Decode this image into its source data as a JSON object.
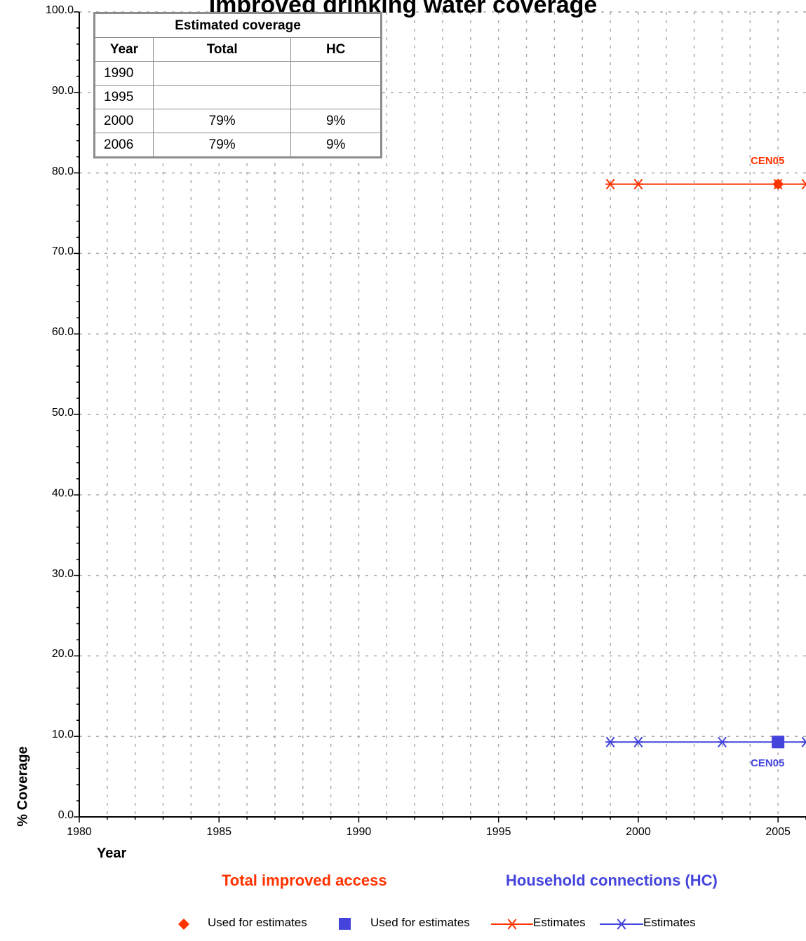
{
  "title": "Improved drinking water coverage",
  "table": {
    "heading": "Estimated coverage",
    "columns": [
      "Year",
      "Total",
      "HC"
    ],
    "rows": [
      {
        "year": "1990",
        "total": "",
        "hc": ""
      },
      {
        "year": "1995",
        "total": "",
        "hc": ""
      },
      {
        "year": "2000",
        "total": "79%",
        "hc": "9%"
      },
      {
        "year": "2006",
        "total": "79%",
        "hc": "9%"
      }
    ]
  },
  "labels": {
    "ylabel": "% Coverage",
    "xlabel": "Year",
    "group_total": "Total improved access",
    "group_hc": "Household connections (HC)",
    "point_total": "CEN05",
    "point_hc": "CEN05"
  },
  "legend": [
    {
      "marker": "diamond",
      "color": "#ff3300",
      "label": "Used for estimates"
    },
    {
      "marker": "square",
      "color": "#4444dd",
      "label": "Used for estimates"
    },
    {
      "marker": "line-star",
      "color": "#ff3300",
      "label": "Estimates"
    },
    {
      "marker": "line-star",
      "color": "#4444dd",
      "label": "Estimates"
    }
  ],
  "colors": {
    "total": "#ff3300",
    "hc": "#4444dd",
    "grid": "#aaaaaa"
  },
  "chart_data": {
    "type": "line",
    "title": "Improved drinking water coverage",
    "xlabel": "Year",
    "ylabel": "% Coverage",
    "xlim": [
      1980,
      2006
    ],
    "ylim": [
      0,
      100
    ],
    "x_ticks": [
      "1980",
      "1985",
      "1990",
      "1995",
      "2000",
      "2005"
    ],
    "y_ticks": [
      "0.0",
      "10.0",
      "20.0",
      "30.0",
      "40.0",
      "50.0",
      "60.0",
      "70.0",
      "80.0",
      "90.0",
      "100.0"
    ],
    "grid": true,
    "series": [
      {
        "name": "Estimates",
        "group": "Total improved access",
        "color": "#ff3300",
        "x": [
          1999,
          2000,
          2005,
          2006
        ],
        "y": [
          78.6,
          78.6,
          78.6,
          78.6
        ]
      },
      {
        "name": "Estimates",
        "group": "Household connections (HC)",
        "color": "#4444dd",
        "x": [
          1999,
          2000,
          2003,
          2005,
          2006
        ],
        "y": [
          9.3,
          9.3,
          9.3,
          9.3,
          9.3
        ]
      }
    ],
    "surveys": [
      {
        "name": "Used for estimates",
        "group": "Total improved access",
        "marker": "diamond",
        "x": 2005,
        "y": 78.6,
        "label": "CEN05"
      },
      {
        "name": "Used for estimates",
        "group": "Household connections (HC)",
        "marker": "square",
        "x": 2005,
        "y": 9.3,
        "label": "CEN05"
      }
    ]
  }
}
